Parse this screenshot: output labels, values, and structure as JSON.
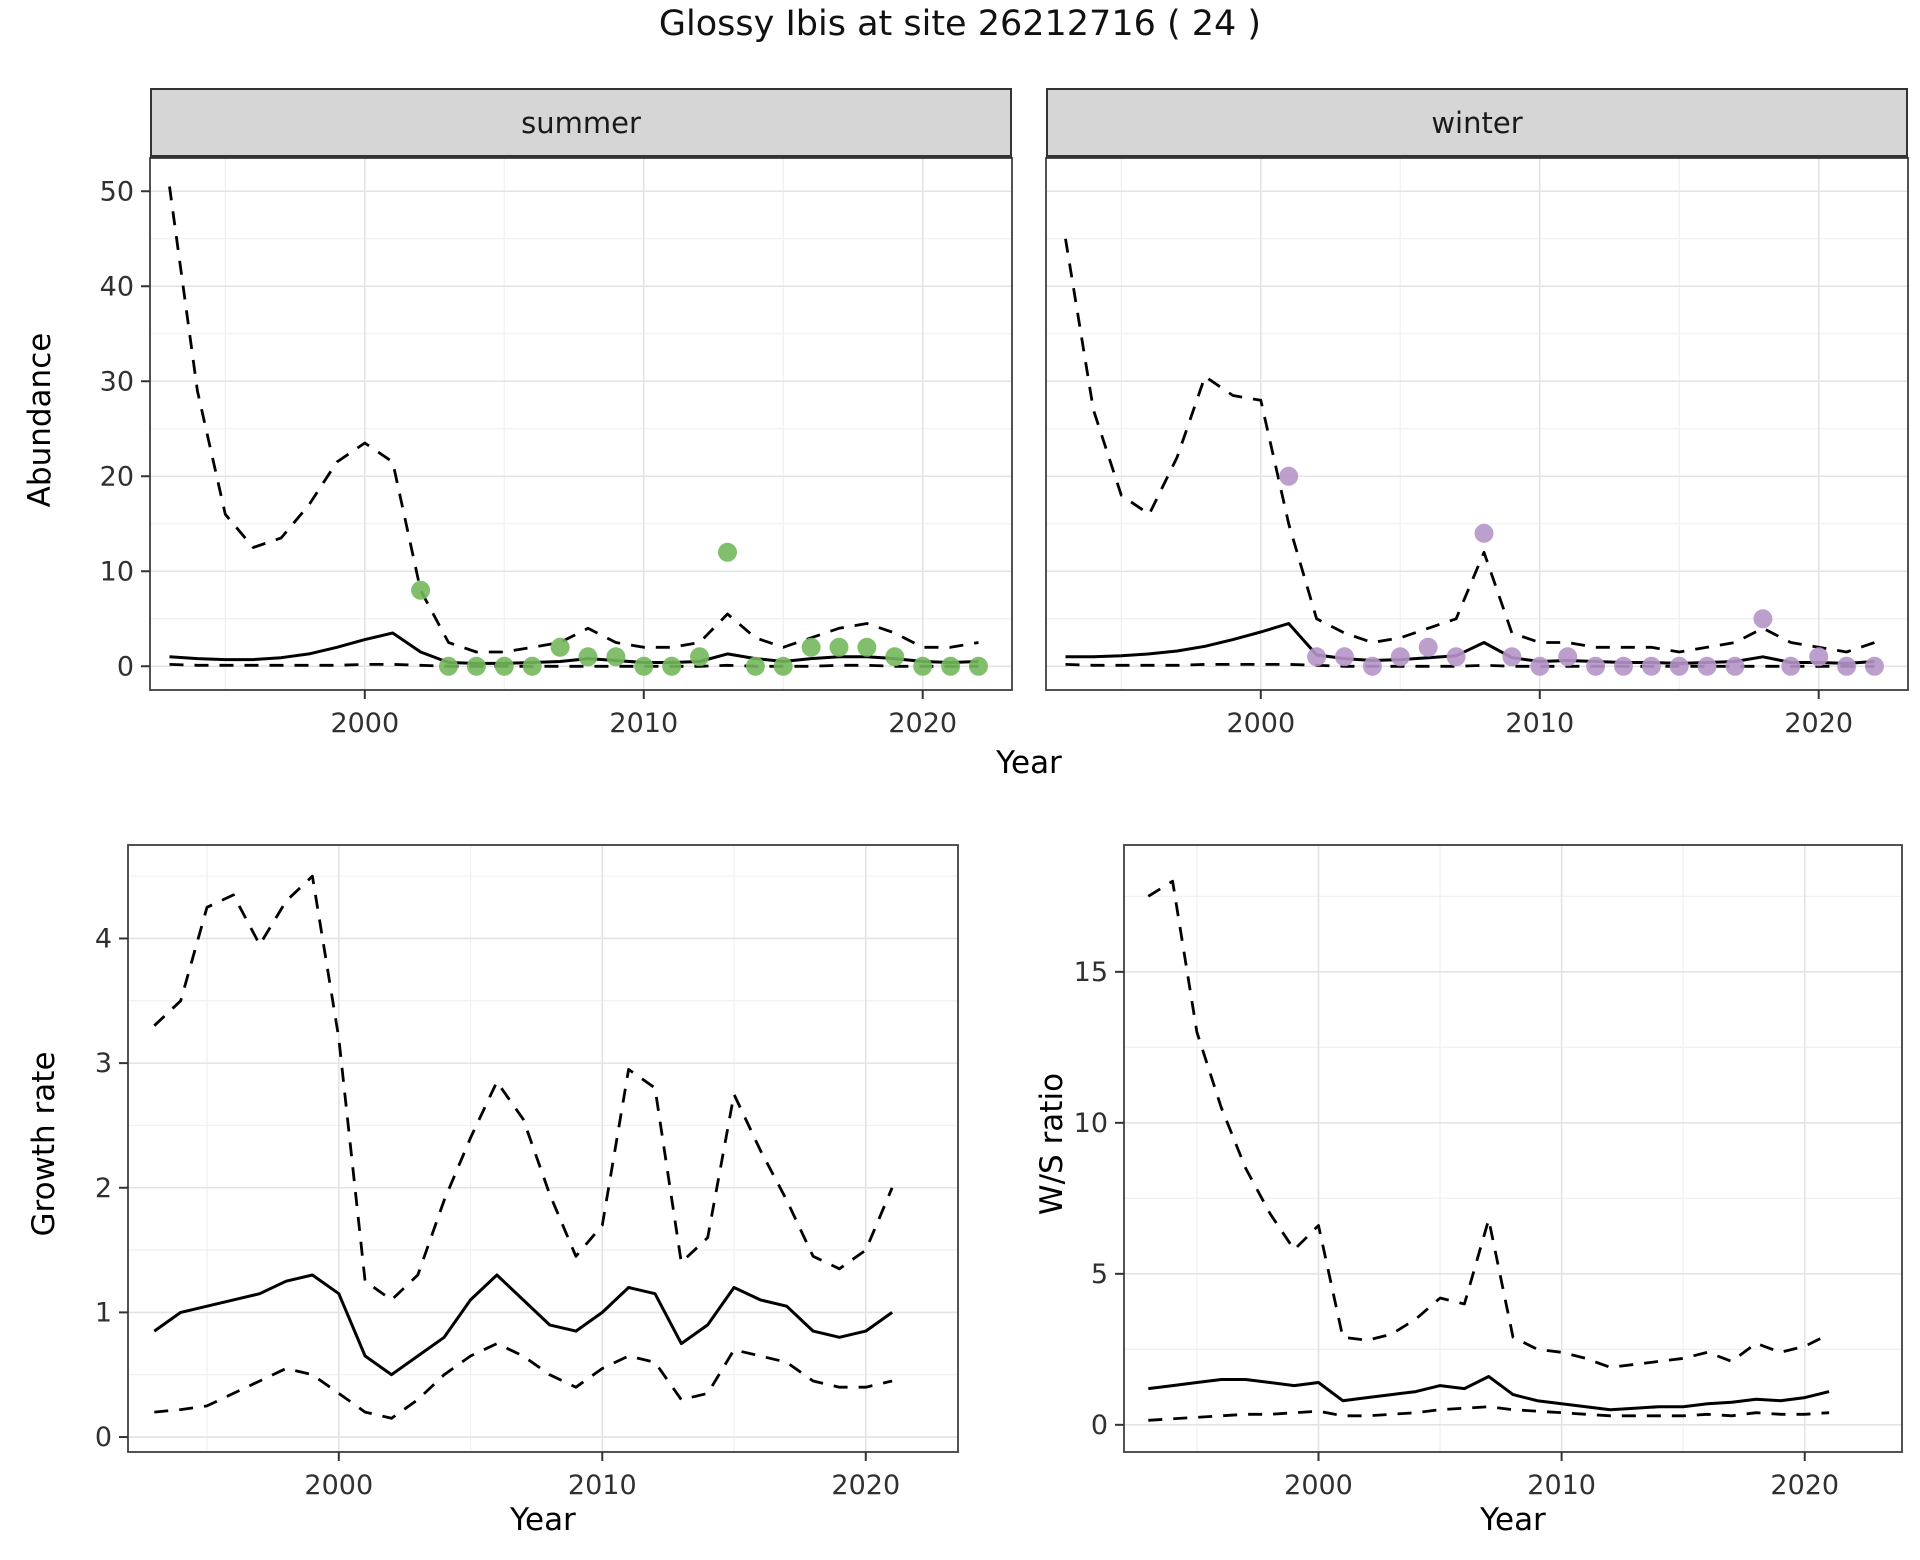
{
  "title": "Glossy Ibis at site 26212716 ( 24 )",
  "colors": {
    "line": "#000000",
    "grid_major": "#e3e3e3",
    "grid_minor": "#f1f1f1",
    "border": "#3f3f3f",
    "tick": "#333333",
    "tick_label": "#303030",
    "strip_bg": "#d6d6d6",
    "summer_points": "#74b85c",
    "winter_points": "#b595c6"
  },
  "chart_data": [
    {
      "id": "summer",
      "type": "line",
      "facet": "summer",
      "xlabel": "Year",
      "ylabel": "Abundance",
      "xlim": [
        1992.3,
        2023.2
      ],
      "ylim": [
        -2.5,
        53.5
      ],
      "xticks": [
        2000,
        2010,
        2020
      ],
      "xticks_minor": [
        1995,
        2005,
        2015
      ],
      "yticks": [
        0,
        10,
        20,
        30,
        40,
        50
      ],
      "yticks_minor": [
        5,
        15,
        25,
        35,
        45
      ],
      "x": [
        1993,
        1994,
        1995,
        1996,
        1997,
        1998,
        1999,
        2000,
        2001,
        2002,
        2003,
        2004,
        2005,
        2006,
        2007,
        2008,
        2009,
        2010,
        2011,
        2012,
        2013,
        2014,
        2015,
        2016,
        2017,
        2018,
        2019,
        2020,
        2021,
        2022
      ],
      "series": [
        {
          "name": "upper-ci",
          "style": "dashed",
          "values": [
            50.5,
            29,
            16,
            12.5,
            13.5,
            17,
            21.5,
            23.5,
            21.5,
            8,
            2.5,
            1.5,
            1.5,
            2,
            2.5,
            4,
            2.5,
            2,
            2,
            2.5,
            5.5,
            3,
            2,
            3,
            4,
            4.5,
            3.5,
            2,
            2,
            2.5
          ]
        },
        {
          "name": "mean",
          "style": "solid",
          "values": [
            1,
            0.8,
            0.7,
            0.7,
            0.9,
            1.3,
            2,
            2.8,
            3.5,
            1.5,
            0.4,
            0.3,
            0.3,
            0.4,
            0.5,
            0.8,
            0.6,
            0.4,
            0.4,
            0.5,
            1.3,
            0.8,
            0.5,
            0.8,
            1,
            1,
            0.8,
            0.5,
            0.4,
            0.5
          ]
        },
        {
          "name": "lower-ci",
          "style": "dashed",
          "values": [
            0.2,
            0.1,
            0.1,
            0.1,
            0.1,
            0.1,
            0.1,
            0.2,
            0.2,
            0.1,
            0,
            0,
            0,
            0,
            0,
            0,
            0,
            0,
            0,
            0,
            0.1,
            0,
            0,
            0,
            0.1,
            0.1,
            0,
            0,
            0,
            0
          ]
        }
      ],
      "points": {
        "name": "observed-counts",
        "color": "#74b85c",
        "x": [
          2002,
          2003,
          2004,
          2005,
          2006,
          2007,
          2008,
          2009,
          2010,
          2011,
          2012,
          2013,
          2014,
          2015,
          2016,
          2017,
          2018,
          2019,
          2020,
          2021,
          2022
        ],
        "y": [
          8,
          0,
          0,
          0,
          0,
          2,
          1,
          1,
          0,
          0,
          1,
          12,
          0,
          0,
          2,
          2,
          2,
          1,
          0,
          0,
          0
        ]
      }
    },
    {
      "id": "winter",
      "type": "line",
      "facet": "winter",
      "xlabel": "Year",
      "ylabel": "Abundance",
      "xlim": [
        1992.3,
        2023.2
      ],
      "ylim": [
        -2.5,
        53.5
      ],
      "xticks": [
        2000,
        2010,
        2020
      ],
      "xticks_minor": [
        1995,
        2005,
        2015
      ],
      "yticks": [
        0,
        10,
        20,
        30,
        40,
        50
      ],
      "yticks_minor": [
        5,
        15,
        25,
        35,
        45
      ],
      "x": [
        1993,
        1994,
        1995,
        1996,
        1997,
        1998,
        1999,
        2000,
        2001,
        2002,
        2003,
        2004,
        2005,
        2006,
        2007,
        2008,
        2009,
        2010,
        2011,
        2012,
        2013,
        2014,
        2015,
        2016,
        2017,
        2018,
        2019,
        2020,
        2021,
        2022
      ],
      "series": [
        {
          "name": "upper-ci",
          "style": "dashed",
          "values": [
            45,
            27,
            18,
            16,
            22,
            30.5,
            28.5,
            28,
            15,
            5,
            3.5,
            2.5,
            3,
            4,
            5,
            12,
            3.5,
            2.5,
            2.5,
            2,
            2,
            2,
            1.5,
            2,
            2.5,
            4,
            2.5,
            2,
            1.5,
            2.5
          ]
        },
        {
          "name": "mean",
          "style": "solid",
          "values": [
            1,
            1,
            1.1,
            1.3,
            1.6,
            2.1,
            2.8,
            3.6,
            4.5,
            1.2,
            0.8,
            0.6,
            0.7,
            0.9,
            1.1,
            2.5,
            0.9,
            0.5,
            0.6,
            0.5,
            0.4,
            0.4,
            0.3,
            0.4,
            0.5,
            1,
            0.4,
            0.4,
            0.3,
            0.5
          ]
        },
        {
          "name": "lower-ci",
          "style": "dashed",
          "values": [
            0.2,
            0.1,
            0.1,
            0.1,
            0.1,
            0.2,
            0.2,
            0.2,
            0.2,
            0.1,
            0,
            0,
            0,
            0,
            0,
            0.1,
            0,
            0,
            0,
            0,
            0,
            0,
            0,
            0,
            0,
            0,
            0,
            0,
            0,
            0
          ]
        }
      ],
      "points": {
        "name": "observed-counts",
        "color": "#b595c6",
        "x": [
          2001,
          2002,
          2003,
          2004,
          2005,
          2006,
          2007,
          2008,
          2009,
          2010,
          2011,
          2012,
          2013,
          2014,
          2015,
          2016,
          2017,
          2018,
          2019,
          2020,
          2021,
          2022
        ],
        "y": [
          20,
          1,
          1,
          0,
          1,
          2,
          1,
          14,
          1,
          0,
          1,
          0,
          0,
          0,
          0,
          0,
          0,
          5,
          0,
          1,
          0,
          0
        ]
      }
    },
    {
      "id": "growth",
      "type": "line",
      "facet": "",
      "xlabel": "Year",
      "ylabel": "Growth rate",
      "xlim": [
        1992,
        2023.5
      ],
      "ylim": [
        -0.12,
        4.75
      ],
      "xticks": [
        2000,
        2010,
        2020
      ],
      "xticks_minor": [
        1995,
        2005,
        2015
      ],
      "yticks": [
        0,
        1,
        2,
        3,
        4
      ],
      "yticks_minor": [
        0.5,
        1.5,
        2.5,
        3.5,
        4.5
      ],
      "x": [
        1993,
        1994,
        1995,
        1996,
        1997,
        1998,
        1999,
        2000,
        2001,
        2002,
        2003,
        2004,
        2005,
        2006,
        2007,
        2008,
        2009,
        2010,
        2011,
        2012,
        2013,
        2014,
        2015,
        2016,
        2017,
        2018,
        2019,
        2020,
        2021
      ],
      "series": [
        {
          "name": "upper-ci",
          "style": "dashed",
          "values": [
            3.3,
            3.5,
            4.25,
            4.35,
            3.95,
            4.3,
            4.5,
            3.2,
            1.25,
            1.1,
            1.3,
            1.9,
            2.4,
            2.85,
            2.55,
            1.95,
            1.45,
            1.7,
            2.95,
            2.8,
            1.4,
            1.6,
            2.75,
            2.3,
            1.9,
            1.45,
            1.35,
            1.5,
            2.0
          ]
        },
        {
          "name": "mean",
          "style": "solid",
          "values": [
            0.85,
            1.0,
            1.05,
            1.1,
            1.15,
            1.25,
            1.3,
            1.15,
            0.65,
            0.5,
            0.65,
            0.8,
            1.1,
            1.3,
            1.1,
            0.9,
            0.85,
            1.0,
            1.2,
            1.15,
            0.75,
            0.9,
            1.2,
            1.1,
            1.05,
            0.85,
            0.8,
            0.85,
            1.0
          ]
        },
        {
          "name": "lower-ci",
          "style": "dashed",
          "values": [
            0.2,
            0.22,
            0.25,
            0.35,
            0.45,
            0.55,
            0.5,
            0.35,
            0.2,
            0.15,
            0.3,
            0.5,
            0.65,
            0.75,
            0.65,
            0.5,
            0.4,
            0.55,
            0.65,
            0.6,
            0.3,
            0.35,
            0.7,
            0.65,
            0.6,
            0.45,
            0.4,
            0.4,
            0.45
          ]
        }
      ]
    },
    {
      "id": "ws",
      "type": "line",
      "facet": "",
      "xlabel": "Year",
      "ylabel": "W/S ratio",
      "xlim": [
        1992,
        2024
      ],
      "ylim": [
        -0.9,
        19.2
      ],
      "xticks": [
        2000,
        2010,
        2020
      ],
      "xticks_minor": [
        1995,
        2005,
        2015
      ],
      "yticks": [
        0,
        5,
        10,
        15
      ],
      "yticks_minor": [
        2.5,
        7.5,
        12.5,
        17.5
      ],
      "x": [
        1993,
        1994,
        1995,
        1996,
        1997,
        1998,
        1999,
        2000,
        2001,
        2002,
        2003,
        2004,
        2005,
        2006,
        2007,
        2008,
        2009,
        2010,
        2011,
        2012,
        2013,
        2014,
        2015,
        2016,
        2017,
        2018,
        2019,
        2020,
        2021
      ],
      "series": [
        {
          "name": "upper-ci",
          "style": "dashed",
          "values": [
            17.5,
            18,
            13,
            10.5,
            8.5,
            7,
            5.8,
            6.6,
            2.9,
            2.8,
            3,
            3.5,
            4.2,
            4,
            6.8,
            2.9,
            2.5,
            2.4,
            2.2,
            1.9,
            2,
            2.1,
            2.2,
            2.4,
            2.1,
            2.7,
            2.4,
            2.6,
            3
          ]
        },
        {
          "name": "mean",
          "style": "solid",
          "values": [
            1.2,
            1.3,
            1.4,
            1.5,
            1.5,
            1.4,
            1.3,
            1.4,
            0.8,
            0.9,
            1,
            1.1,
            1.3,
            1.2,
            1.6,
            1,
            0.8,
            0.7,
            0.6,
            0.5,
            0.55,
            0.6,
            0.6,
            0.7,
            0.75,
            0.85,
            0.8,
            0.9,
            1.1
          ]
        },
        {
          "name": "lower-ci",
          "style": "dashed",
          "values": [
            0.15,
            0.2,
            0.25,
            0.3,
            0.35,
            0.35,
            0.4,
            0.45,
            0.3,
            0.3,
            0.35,
            0.4,
            0.5,
            0.55,
            0.6,
            0.5,
            0.45,
            0.4,
            0.35,
            0.3,
            0.3,
            0.3,
            0.3,
            0.35,
            0.3,
            0.4,
            0.35,
            0.35,
            0.4
          ]
        }
      ]
    }
  ]
}
